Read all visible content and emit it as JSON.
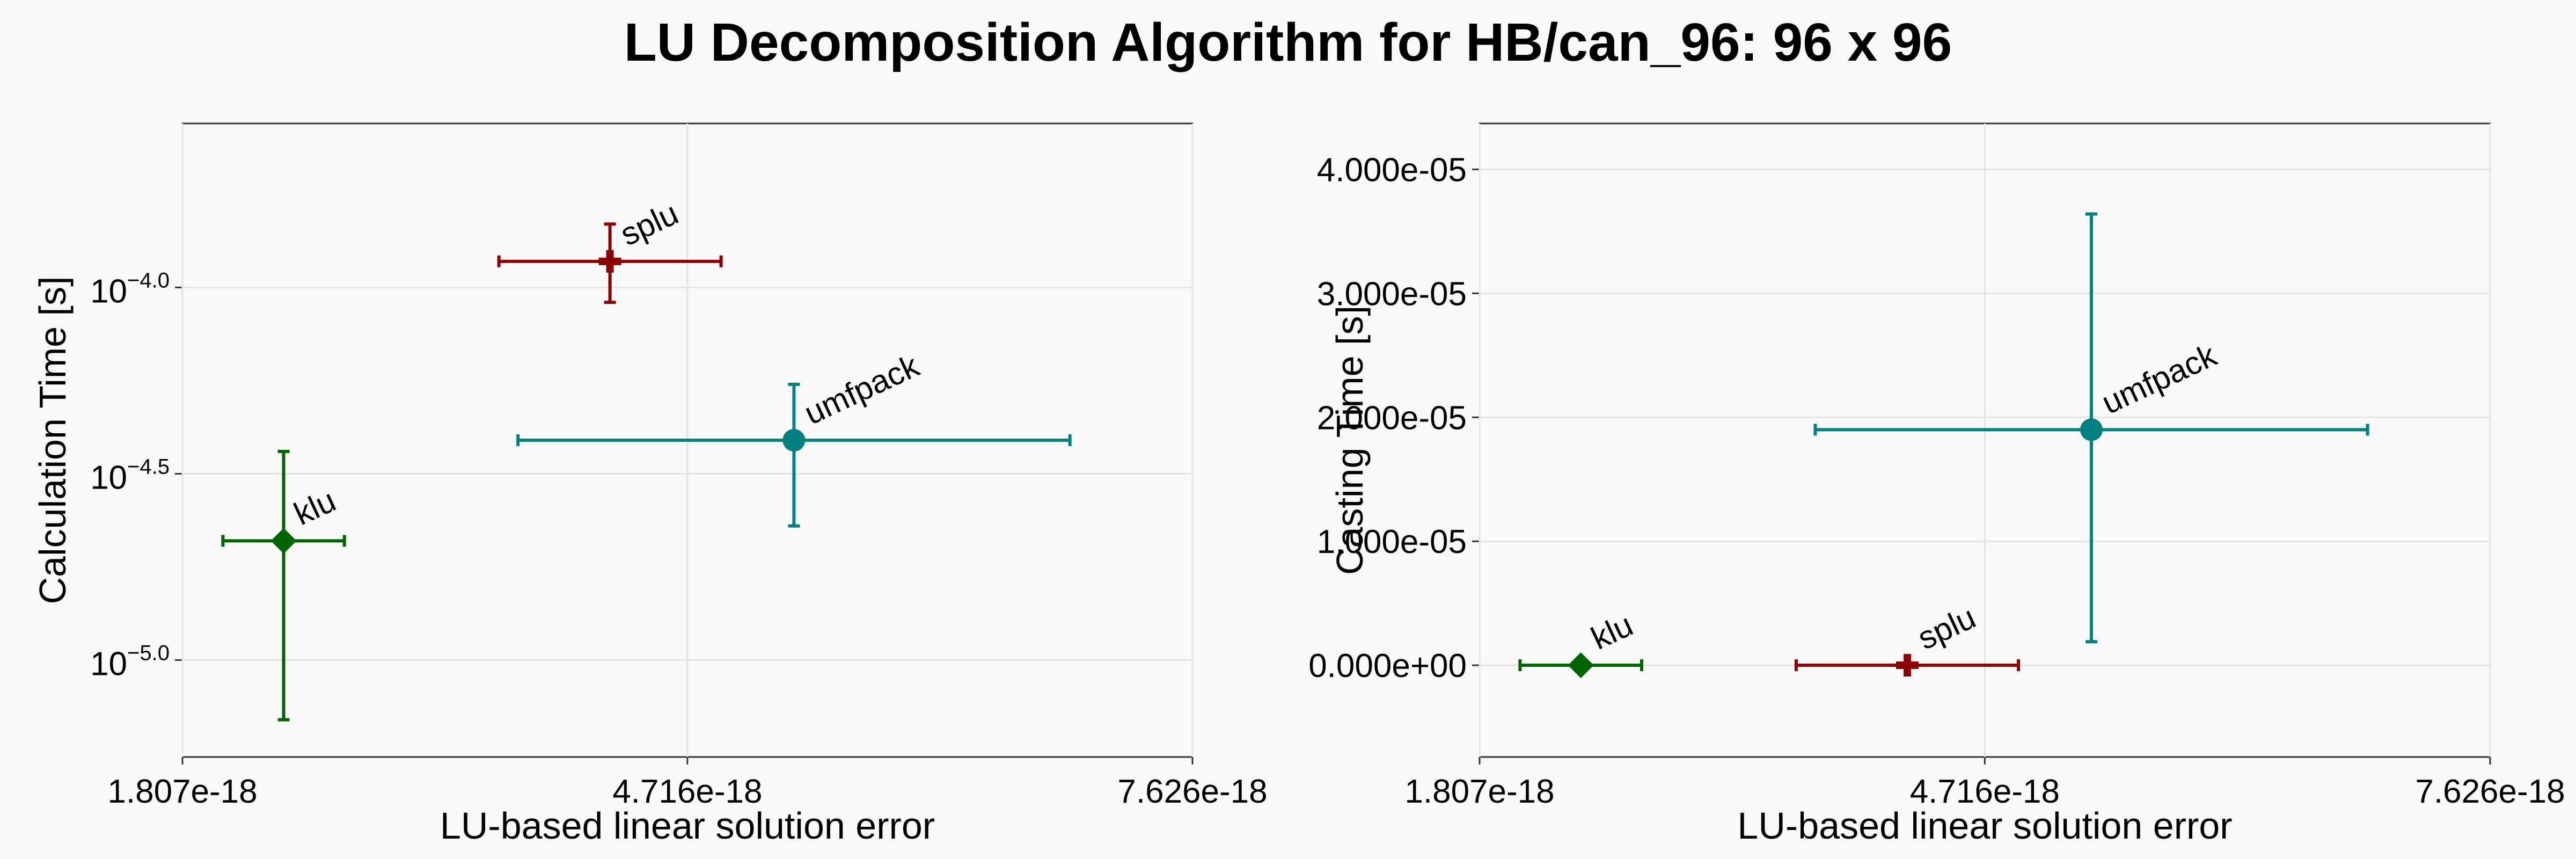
{
  "suptitle": "LU Decomposition Algorithm for HB/can_96: 96 x 96",
  "chart_data": [
    {
      "type": "scatter",
      "xlabel": "LU-based linear solution error",
      "ylabel": "Calculation Time [s]",
      "y_scale": "log",
      "xlim": [
        1.807e-18,
        7.626e-18
      ],
      "x_ticks": [
        1.807e-18,
        4.716e-18,
        7.626e-18
      ],
      "x_tick_labels": [
        "1.807e-18",
        "4.716e-18",
        "7.626e-18"
      ],
      "ylim_log10": [
        -5.26,
        -3.56
      ],
      "y_ticks_log10": [
        -5.0,
        -4.5,
        -4.0
      ],
      "y_tick_labels": [
        {
          "base": "10",
          "exp": "−5.0"
        },
        {
          "base": "10",
          "exp": "−4.5"
        },
        {
          "base": "10",
          "exp": "−4.0"
        }
      ],
      "grid": true,
      "points": [
        {
          "label": "klu",
          "marker": "diamond",
          "color": "#006400",
          "x": 2.39e-18,
          "x_err": [
            2.04e-18,
            2.74e-18
          ],
          "log10_y": -4.68,
          "log10_y_err": [
            -5.16,
            -4.44
          ]
        },
        {
          "label": "splu",
          "marker": "cross",
          "color": "#8b0000",
          "x": 4.27e-18,
          "x_err": [
            3.63e-18,
            4.91e-18
          ],
          "log10_y": -3.93,
          "log10_y_err": [
            -4.04,
            -3.83
          ]
        },
        {
          "label": "umfpack",
          "marker": "circle",
          "color": "#008080",
          "x": 5.33e-18,
          "x_err": [
            3.74e-18,
            6.92e-18
          ],
          "log10_y": -4.41,
          "log10_y_err": [
            -4.64,
            -4.26
          ]
        }
      ]
    },
    {
      "type": "scatter",
      "xlabel": "LU-based linear solution error",
      "ylabel": "Casting Time [s]",
      "y_scale": "linear",
      "xlim": [
        1.807e-18,
        7.626e-18
      ],
      "x_ticks": [
        1.807e-18,
        4.716e-18,
        7.626e-18
      ],
      "x_tick_labels": [
        "1.807e-18",
        "4.716e-18",
        "7.626e-18"
      ],
      "ylim": [
        -7.4e-06,
        4.37e-05
      ],
      "y_ticks": [
        0,
        1e-05,
        2e-05,
        3e-05,
        4e-05
      ],
      "y_tick_labels": [
        "0.000e+00",
        "1.000e-05",
        "2.000e-05",
        "3.000e-05",
        "4.000e-05"
      ],
      "grid": true,
      "points": [
        {
          "label": "klu",
          "marker": "diamond",
          "color": "#006400",
          "x": 2.39e-18,
          "x_err": [
            2.04e-18,
            2.74e-18
          ],
          "y": 0,
          "y_err": [
            0,
            0
          ]
        },
        {
          "label": "splu",
          "marker": "cross",
          "color": "#8b0000",
          "x": 4.27e-18,
          "x_err": [
            3.63e-18,
            4.91e-18
          ],
          "y": 0,
          "y_err": [
            0,
            0
          ]
        },
        {
          "label": "umfpack",
          "marker": "circle",
          "color": "#008080",
          "x": 5.33e-18,
          "x_err": [
            3.74e-18,
            6.92e-18
          ],
          "y": 1.9e-05,
          "y_err": [
            1.9e-06,
            3.64e-05
          ]
        }
      ]
    }
  ]
}
